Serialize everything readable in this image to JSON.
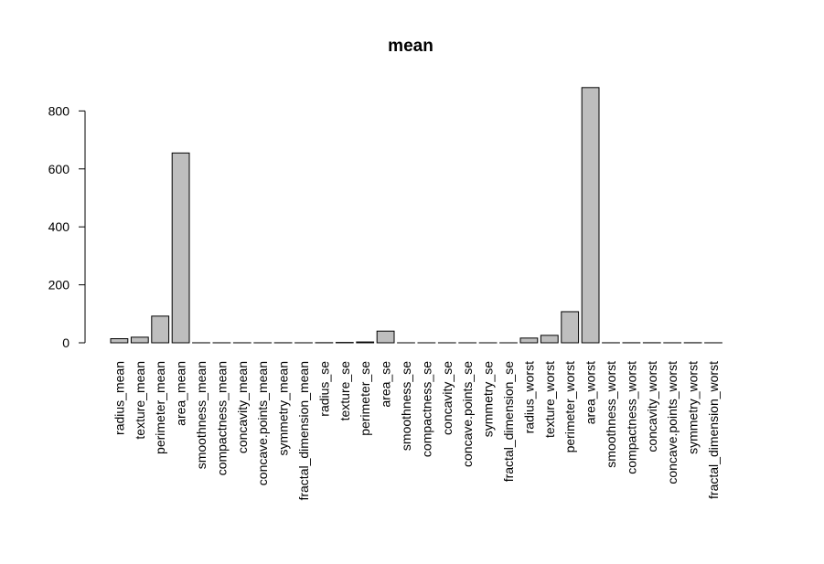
{
  "chart_data": {
    "type": "bar",
    "title": "mean",
    "xlabel": "",
    "ylabel": "",
    "ylim": [
      0,
      880
    ],
    "yticks": [
      "0",
      "200",
      "400",
      "600",
      "800"
    ],
    "categories": [
      "radius_mean",
      "texture_mean",
      "perimeter_mean",
      "area_mean",
      "smoothness_mean",
      "compactness_mean",
      "concavity_mean",
      "concave.points_mean",
      "symmetry_mean",
      "fractal_dimension_mean",
      "radius_se",
      "texture_se",
      "perimeter_se",
      "area_se",
      "smoothness_se",
      "compactness_se",
      "concavity_se",
      "concave.points_se",
      "symmetry_se",
      "fractal_dimension_se",
      "radius_worst",
      "texture_worst",
      "perimeter_worst",
      "area_worst",
      "smoothness_worst",
      "compactness_worst",
      "concavity_worst",
      "concave.points_worst",
      "symmetry_worst",
      "fractal_dimension_worst"
    ],
    "values": [
      14.1,
      19.3,
      92.0,
      654.9,
      0.096,
      0.104,
      0.089,
      0.049,
      0.181,
      0.063,
      0.405,
      1.217,
      2.866,
      40.3,
      0.007,
      0.025,
      0.032,
      0.012,
      0.021,
      0.004,
      16.3,
      25.7,
      107.3,
      880.6,
      0.132,
      0.254,
      0.272,
      0.115,
      0.29,
      0.084
    ],
    "colors": {
      "bar_fill": "#bebebe",
      "bar_stroke": "#000000"
    },
    "grid": false,
    "legend": "none"
  }
}
